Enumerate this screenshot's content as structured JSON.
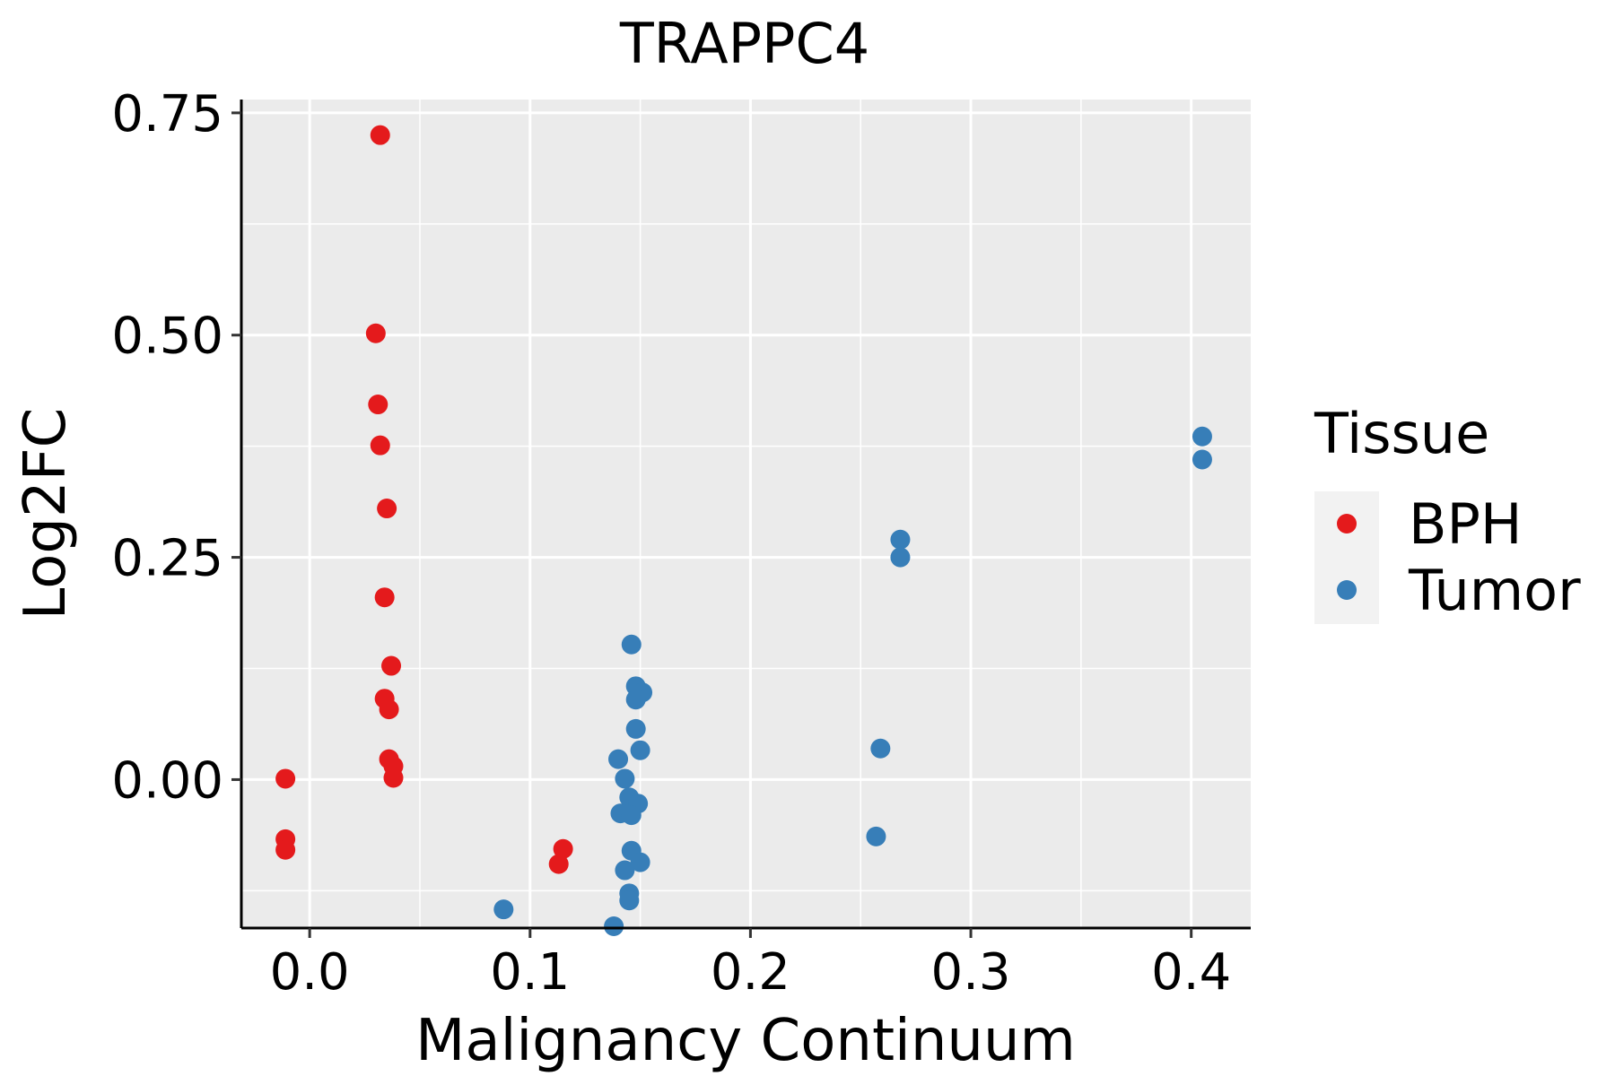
{
  "chart_data": {
    "type": "scatter",
    "title": "TRAPPC4",
    "xlabel": "Malignancy Continuum",
    "ylabel": "Log2FC",
    "xlim": [
      -0.031,
      0.427
    ],
    "ylim": [
      -0.167,
      0.765
    ],
    "x_ticks": [
      0.0,
      0.1,
      0.2,
      0.3,
      0.4
    ],
    "x_tick_labels": [
      "0.0",
      "0.1",
      "0.2",
      "0.3",
      "0.4"
    ],
    "y_ticks": [
      0.0,
      0.25,
      0.5,
      0.75
    ],
    "y_tick_labels": [
      "0.00",
      "0.25",
      "0.50",
      "0.75"
    ],
    "grid": true,
    "legend": {
      "title": "Tissue",
      "position": "right",
      "entries": [
        {
          "label": "BPH",
          "color": "#e41a1c"
        },
        {
          "label": "Tumor",
          "color": "#377eb8"
        }
      ]
    },
    "series": [
      {
        "name": "BPH",
        "color": "#e41a1c",
        "points": [
          {
            "x": 0.032,
            "y": 0.725
          },
          {
            "x": 0.03,
            "y": 0.502
          },
          {
            "x": 0.031,
            "y": 0.422
          },
          {
            "x": 0.032,
            "y": 0.376
          },
          {
            "x": 0.035,
            "y": 0.305
          },
          {
            "x": 0.034,
            "y": 0.205
          },
          {
            "x": 0.037,
            "y": 0.128
          },
          {
            "x": 0.034,
            "y": 0.091
          },
          {
            "x": 0.036,
            "y": 0.079
          },
          {
            "x": 0.036,
            "y": 0.023
          },
          {
            "x": 0.038,
            "y": 0.015
          },
          {
            "x": 0.038,
            "y": 0.002
          },
          {
            "x": -0.011,
            "y": 0.001
          },
          {
            "x": -0.011,
            "y": -0.067
          },
          {
            "x": -0.011,
            "y": -0.079
          },
          {
            "x": 0.115,
            "y": -0.078
          },
          {
            "x": 0.113,
            "y": -0.095
          }
        ]
      },
      {
        "name": "Tumor",
        "color": "#377eb8",
        "points": [
          {
            "x": 0.405,
            "y": 0.386
          },
          {
            "x": 0.405,
            "y": 0.36
          },
          {
            "x": 0.268,
            "y": 0.27
          },
          {
            "x": 0.268,
            "y": 0.25
          },
          {
            "x": 0.259,
            "y": 0.035
          },
          {
            "x": 0.257,
            "y": -0.064
          },
          {
            "x": 0.146,
            "y": 0.152
          },
          {
            "x": 0.148,
            "y": 0.105
          },
          {
            "x": 0.151,
            "y": 0.098
          },
          {
            "x": 0.148,
            "y": 0.09
          },
          {
            "x": 0.148,
            "y": 0.057
          },
          {
            "x": 0.15,
            "y": 0.033
          },
          {
            "x": 0.14,
            "y": 0.023
          },
          {
            "x": 0.143,
            "y": 0.001
          },
          {
            "x": 0.145,
            "y": -0.02
          },
          {
            "x": 0.149,
            "y": -0.027
          },
          {
            "x": 0.141,
            "y": -0.038
          },
          {
            "x": 0.146,
            "y": -0.04
          },
          {
            "x": 0.146,
            "y": -0.08
          },
          {
            "x": 0.15,
            "y": -0.093
          },
          {
            "x": 0.143,
            "y": -0.102
          },
          {
            "x": 0.145,
            "y": -0.128
          },
          {
            "x": 0.145,
            "y": -0.136
          },
          {
            "x": 0.088,
            "y": -0.146
          },
          {
            "x": 0.138,
            "y": -0.165
          }
        ]
      }
    ]
  }
}
